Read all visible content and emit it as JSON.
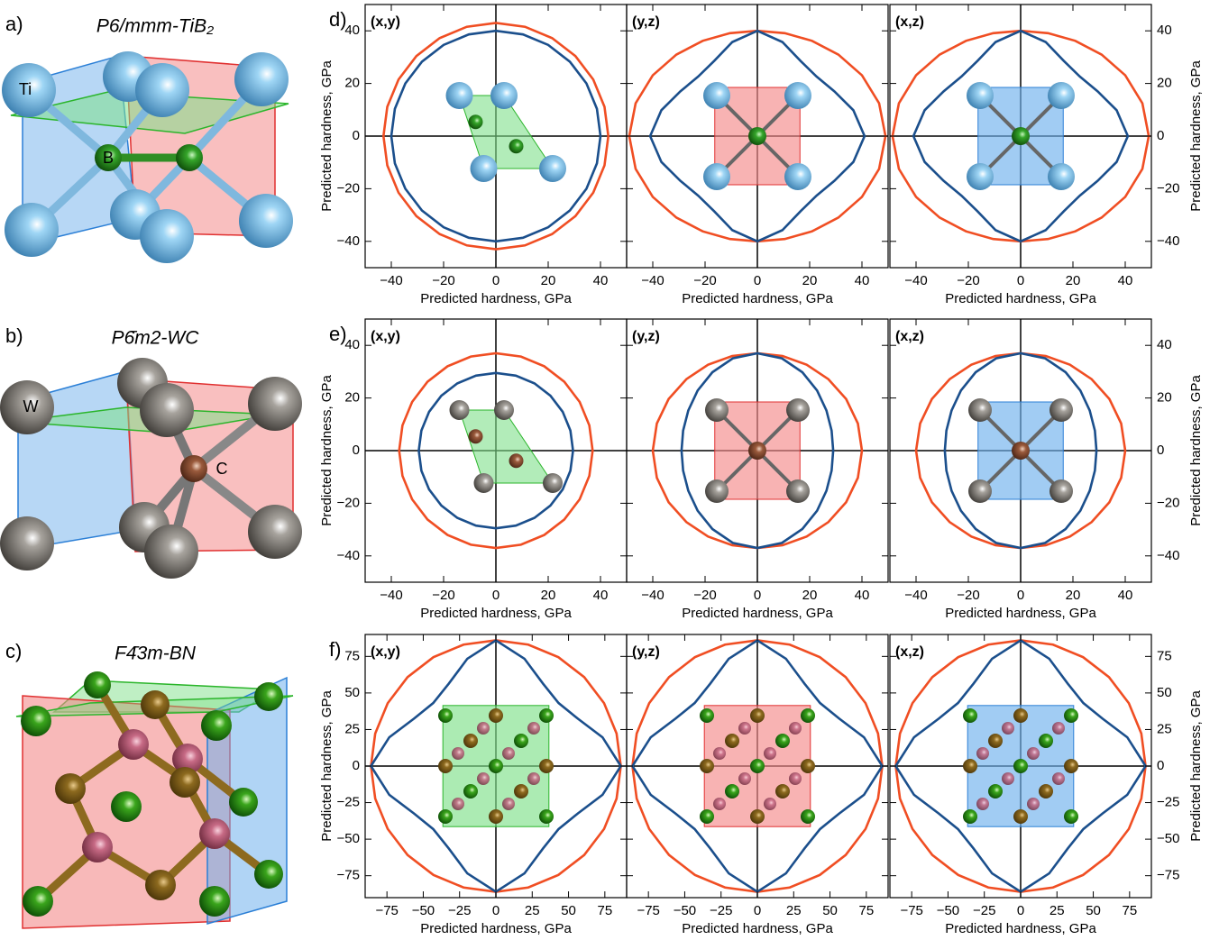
{
  "structures": [
    {
      "label": "a)",
      "title": "P6/mmm-TiB₂",
      "atoms": [
        "Ti",
        "B"
      ]
    },
    {
      "label": "b)",
      "title": "P6̄m2-WC",
      "atoms": [
        "W",
        "C"
      ]
    },
    {
      "label": "c)",
      "title": "F4̄3m-BN",
      "atoms": []
    }
  ],
  "chart_data": [
    {
      "type": "polar",
      "panel_label": "d)",
      "title": "(x,y)",
      "xlabel": "Predicted hardness, GPa",
      "ylabel": "Predicted hardness, GPa",
      "ytick_side": "left",
      "xlim": [
        -50,
        50
      ],
      "ylim": [
        -50,
        50
      ],
      "xticks": [
        {
          "value": -40,
          "label": "−40"
        },
        {
          "value": -20,
          "label": "−20"
        },
        0,
        20,
        40
      ],
      "yticks": [
        {
          "value": -40,
          "label": "−40"
        },
        {
          "value": -20,
          "label": "−20"
        },
        0,
        20,
        40
      ],
      "theta": [
        0,
        15,
        30,
        45,
        60,
        75,
        90,
        105,
        120,
        135,
        150,
        165,
        180,
        195,
        210,
        225,
        240,
        255,
        270,
        285,
        300,
        315,
        330,
        345
      ],
      "series": [
        {
          "color": "#f04e23",
          "values": [
            43,
            43,
            43,
            43,
            43,
            43,
            43,
            43,
            43,
            43,
            43,
            43,
            43,
            43,
            43,
            43,
            43,
            43,
            43,
            43,
            43,
            43,
            43,
            43
          ]
        },
        {
          "color": "#1b4f8c",
          "values": [
            40,
            40,
            40,
            40,
            40,
            40,
            40,
            40,
            40,
            40,
            40,
            40,
            40,
            40,
            40,
            40,
            40,
            40,
            40,
            40,
            40,
            40,
            40,
            40
          ]
        }
      ]
    },
    {
      "type": "polar",
      "title": "(y,z)",
      "xlabel": "Predicted hardness, GPa",
      "xlim": [
        -50,
        50
      ],
      "ylim": [
        -50,
        50
      ],
      "xticks": [
        {
          "value": -40,
          "label": "−40"
        },
        {
          "value": -20,
          "label": "−20"
        },
        0,
        20,
        40
      ],
      "yticks": [
        -40,
        -20,
        0,
        20,
        40
      ],
      "theta": [
        0,
        15,
        30,
        45,
        60,
        75,
        90,
        105,
        120,
        135,
        150,
        165,
        180,
        195,
        210,
        225,
        240,
        255,
        270,
        285,
        300,
        315,
        330,
        345
      ],
      "series": [
        {
          "color": "#f04e23",
          "values": [
            49,
            48.2,
            46.2,
            43.8,
            41.8,
            40.5,
            40,
            40.5,
            41.8,
            43.8,
            46.2,
            48.2,
            49,
            48.2,
            46.2,
            43.8,
            41.8,
            40.5,
            40,
            40.5,
            41.8,
            43.8,
            46.2,
            48.2
          ]
        },
        {
          "color": "#1b4f8c",
          "values": [
            41,
            38,
            34,
            32,
            33,
            37,
            40,
            37,
            33,
            32,
            34,
            38,
            41,
            38,
            34,
            32,
            33,
            37,
            40,
            37,
            33,
            32,
            34,
            38
          ]
        }
      ]
    },
    {
      "type": "polar",
      "title": "(x,z)",
      "xlabel": "Predicted hardness, GPa",
      "ylabel": "Predicted hardness, GPa",
      "ytick_side": "right",
      "xlim": [
        -50,
        50
      ],
      "ylim": [
        -50,
        50
      ],
      "xticks": [
        {
          "value": -40,
          "label": "−40"
        },
        {
          "value": -20,
          "label": "−20"
        },
        0,
        20,
        40
      ],
      "yticks": [
        {
          "value": -40,
          "label": "−40"
        },
        {
          "value": -20,
          "label": "−20"
        },
        0,
        20,
        40
      ],
      "theta": [
        0,
        15,
        30,
        45,
        60,
        75,
        90,
        105,
        120,
        135,
        150,
        165,
        180,
        195,
        210,
        225,
        240,
        255,
        270,
        285,
        300,
        315,
        330,
        345
      ],
      "series": [
        {
          "color": "#f04e23",
          "values": [
            49,
            48.2,
            46.2,
            43.8,
            41.8,
            40.5,
            40,
            40.5,
            41.8,
            43.8,
            46.2,
            48.2,
            49,
            48.2,
            46.2,
            43.8,
            41.8,
            40.5,
            40,
            40.5,
            41.8,
            43.8,
            46.2,
            48.2
          ]
        },
        {
          "color": "#1b4f8c",
          "values": [
            41,
            38,
            34,
            32,
            33,
            37,
            40,
            37,
            33,
            32,
            34,
            38,
            41,
            38,
            34,
            32,
            33,
            37,
            40,
            37,
            33,
            32,
            34,
            38
          ]
        }
      ]
    },
    {
      "type": "polar",
      "panel_label": "e)",
      "title": "(x,y)",
      "xlabel": "Predicted hardness, GPa",
      "ylabel": "Predicted hardness, GPa",
      "ytick_side": "left",
      "xlim": [
        -50,
        50
      ],
      "ylim": [
        -50,
        50
      ],
      "xticks": [
        {
          "value": -40,
          "label": "−40"
        },
        {
          "value": -20,
          "label": "−20"
        },
        0,
        20,
        40
      ],
      "yticks": [
        {
          "value": -40,
          "label": "−40"
        },
        {
          "value": -20,
          "label": "−20"
        },
        0,
        20,
        40
      ],
      "theta": [
        0,
        15,
        30,
        45,
        60,
        75,
        90,
        105,
        120,
        135,
        150,
        165,
        180,
        195,
        210,
        225,
        240,
        255,
        270,
        285,
        300,
        315,
        330,
        345
      ],
      "series": [
        {
          "color": "#f04e23",
          "values": [
            37,
            37,
            37,
            37,
            37,
            37,
            37,
            37,
            37,
            37,
            37,
            37,
            37,
            37,
            37,
            37,
            37,
            37,
            37,
            37,
            37,
            37,
            37,
            37
          ]
        },
        {
          "color": "#1b4f8c",
          "values": [
            29.5,
            29.5,
            29.5,
            29.5,
            29.5,
            29.5,
            29.5,
            29.5,
            29.5,
            29.5,
            29.5,
            29.5,
            29.5,
            29.5,
            29.5,
            29.5,
            29.5,
            29.5,
            29.5,
            29.5,
            29.5,
            29.5,
            29.5,
            29.5
          ]
        }
      ]
    },
    {
      "type": "polar",
      "title": "(y,z)",
      "xlabel": "Predicted hardness, GPa",
      "xlim": [
        -50,
        50
      ],
      "ylim": [
        -50,
        50
      ],
      "xticks": [
        {
          "value": -40,
          "label": "−40"
        },
        {
          "value": -20,
          "label": "−20"
        },
        0,
        20,
        40
      ],
      "yticks": [
        -40,
        -20,
        0,
        20,
        40
      ],
      "theta": [
        0,
        15,
        30,
        45,
        60,
        75,
        90,
        105,
        120,
        135,
        150,
        165,
        180,
        195,
        210,
        225,
        240,
        255,
        270,
        285,
        300,
        315,
        330,
        345
      ],
      "series": [
        {
          "color": "#f04e23",
          "values": [
            40,
            39.8,
            39.2,
            38.4,
            37.7,
            37.2,
            37,
            37.2,
            37.7,
            38.4,
            39.2,
            39.8,
            40,
            39.8,
            39.2,
            38.4,
            37.7,
            37.2,
            37,
            37.2,
            37.7,
            38.4,
            39.2,
            39.8
          ]
        },
        {
          "color": "#1b4f8c",
          "values": [
            29,
            29.4,
            30.5,
            32.3,
            34.4,
            36.3,
            37,
            36.3,
            34.4,
            32.3,
            30.5,
            29.4,
            29,
            29.4,
            30.5,
            32.3,
            34.4,
            36.3,
            37,
            36.3,
            34.4,
            32.3,
            30.5,
            29.4
          ]
        }
      ]
    },
    {
      "type": "polar",
      "title": "(x,z)",
      "xlabel": "Predicted hardness, GPa",
      "ylabel": "Predicted hardness, GPa",
      "ytick_side": "right",
      "xlim": [
        -50,
        50
      ],
      "ylim": [
        -50,
        50
      ],
      "xticks": [
        {
          "value": -40,
          "label": "−40"
        },
        {
          "value": -20,
          "label": "−20"
        },
        0,
        20,
        40
      ],
      "yticks": [
        {
          "value": -40,
          "label": "−40"
        },
        {
          "value": -20,
          "label": "−20"
        },
        0,
        20,
        40
      ],
      "theta": [
        0,
        15,
        30,
        45,
        60,
        75,
        90,
        105,
        120,
        135,
        150,
        165,
        180,
        195,
        210,
        225,
        240,
        255,
        270,
        285,
        300,
        315,
        330,
        345
      ],
      "series": [
        {
          "color": "#f04e23",
          "values": [
            40,
            39.8,
            39.2,
            38.4,
            37.7,
            37.2,
            37,
            37.2,
            37.7,
            38.4,
            39.2,
            39.8,
            40,
            39.8,
            39.2,
            38.4,
            37.7,
            37.2,
            37,
            37.2,
            37.7,
            38.4,
            39.2,
            39.8
          ]
        },
        {
          "color": "#1b4f8c",
          "values": [
            29,
            29.4,
            30.5,
            32.3,
            34.4,
            36.3,
            37,
            36.3,
            34.4,
            32.3,
            30.5,
            29.4,
            29,
            29.4,
            30.5,
            32.3,
            34.4,
            36.3,
            37,
            36.3,
            34.4,
            32.3,
            30.5,
            29.4
          ]
        }
      ]
    },
    {
      "type": "polar",
      "panel_label": "f)",
      "title": "(x,y)",
      "xlabel": "Predicted hardness, GPa",
      "ylabel": "Predicted hardness, GPa",
      "ytick_side": "left",
      "xlim": [
        -90,
        90
      ],
      "ylim": [
        -90,
        90
      ],
      "xticks": [
        {
          "value": -75,
          "label": "−75"
        },
        {
          "value": -50,
          "label": "−50"
        },
        {
          "value": -25,
          "label": "−25"
        },
        0,
        25,
        50,
        75
      ],
      "yticks": [
        {
          "value": -75,
          "label": "−75"
        },
        {
          "value": -50,
          "label": "−50"
        },
        {
          "value": -25,
          "label": "−25"
        },
        0,
        25,
        50,
        75
      ],
      "theta": [
        0,
        15,
        30,
        45,
        60,
        75,
        90,
        105,
        120,
        135,
        150,
        165,
        180,
        195,
        210,
        225,
        240,
        255,
        270,
        285,
        300,
        315,
        330,
        345
      ],
      "series": [
        {
          "color": "#f04e23",
          "values": [
            86,
            86,
            86,
            86,
            86,
            86,
            86,
            86,
            86,
            86,
            86,
            86,
            86,
            86,
            86,
            86,
            86,
            86,
            86,
            86,
            86,
            86,
            86,
            86
          ]
        },
        {
          "color": "#1b4f8c",
          "values": [
            86,
            76,
            65,
            61,
            65,
            76,
            86,
            76,
            65,
            61,
            65,
            76,
            86,
            76,
            65,
            61,
            65,
            76,
            86,
            76,
            65,
            61,
            65,
            76
          ]
        }
      ]
    },
    {
      "type": "polar",
      "title": "(y,z)",
      "xlabel": "Predicted hardness, GPa",
      "xlim": [
        -90,
        90
      ],
      "ylim": [
        -90,
        90
      ],
      "xticks": [
        {
          "value": -75,
          "label": "−75"
        },
        {
          "value": -50,
          "label": "−50"
        },
        {
          "value": -25,
          "label": "−25"
        },
        0,
        25,
        50,
        75
      ],
      "yticks": [
        -75,
        -50,
        -25,
        0,
        25,
        50,
        75
      ],
      "theta": [
        0,
        15,
        30,
        45,
        60,
        75,
        90,
        105,
        120,
        135,
        150,
        165,
        180,
        195,
        210,
        225,
        240,
        255,
        270,
        285,
        300,
        315,
        330,
        345
      ],
      "series": [
        {
          "color": "#f04e23",
          "values": [
            86,
            86,
            86,
            86,
            86,
            86,
            86,
            86,
            86,
            86,
            86,
            86,
            86,
            86,
            86,
            86,
            86,
            86,
            86,
            86,
            86,
            86,
            86,
            86
          ]
        },
        {
          "color": "#1b4f8c",
          "values": [
            86,
            76,
            65,
            61,
            65,
            76,
            86,
            76,
            65,
            61,
            65,
            76,
            86,
            76,
            65,
            61,
            65,
            76,
            86,
            76,
            65,
            61,
            65,
            76
          ]
        }
      ]
    },
    {
      "type": "polar",
      "title": "(x,z)",
      "xlabel": "Predicted hardness, GPa",
      "ylabel": "Predicted hardness, GPa",
      "ytick_side": "right",
      "xlim": [
        -90,
        90
      ],
      "ylim": [
        -90,
        90
      ],
      "xticks": [
        {
          "value": -75,
          "label": "−75"
        },
        {
          "value": -50,
          "label": "−50"
        },
        {
          "value": -25,
          "label": "−25"
        },
        0,
        25,
        50,
        75
      ],
      "yticks": [
        {
          "value": -75,
          "label": "−75"
        },
        {
          "value": -50,
          "label": "−50"
        },
        {
          "value": -25,
          "label": "−25"
        },
        0,
        25,
        50,
        75
      ],
      "theta": [
        0,
        15,
        30,
        45,
        60,
        75,
        90,
        105,
        120,
        135,
        150,
        165,
        180,
        195,
        210,
        225,
        240,
        255,
        270,
        285,
        300,
        315,
        330,
        345
      ],
      "series": [
        {
          "color": "#f04e23",
          "values": [
            86,
            86,
            86,
            86,
            86,
            86,
            86,
            86,
            86,
            86,
            86,
            86,
            86,
            86,
            86,
            86,
            86,
            86,
            86,
            86,
            86,
            86,
            86,
            86
          ]
        },
        {
          "color": "#1b4f8c",
          "values": [
            86,
            76,
            65,
            61,
            65,
            76,
            86,
            76,
            65,
            61,
            65,
            76,
            86,
            76,
            65,
            61,
            65,
            76,
            86,
            76,
            65,
            61,
            65,
            76
          ]
        }
      ]
    }
  ]
}
